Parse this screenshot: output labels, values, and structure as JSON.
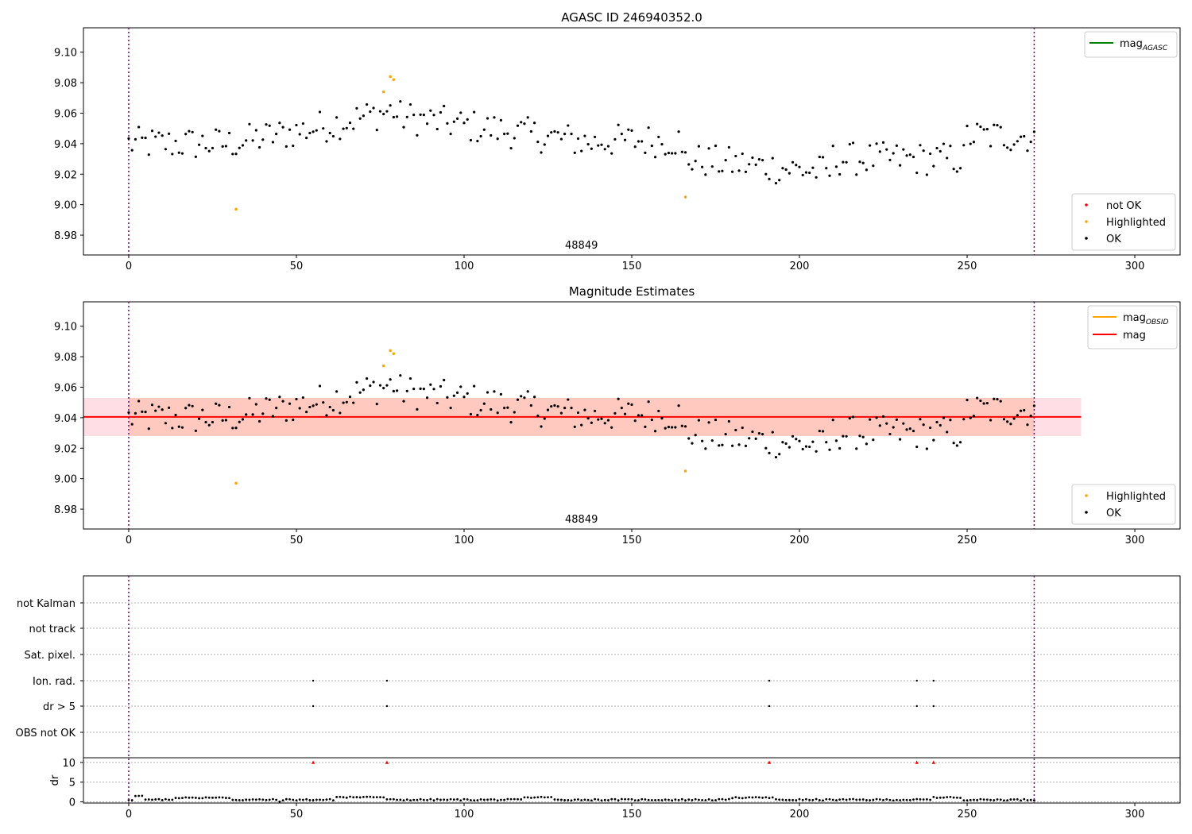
{
  "colors": {
    "ok": "#000000",
    "highlighted": "#ffa500",
    "not_ok": "#ff0000",
    "mag_agasc": "#008000",
    "mag_obsid": "#ffa500",
    "mag": "#ff0000",
    "band_outer": "#ffc0cb",
    "band_inner": "#ffa07a",
    "vline": "#800080",
    "grid": "#b0b0b0"
  },
  "chart_data": [
    {
      "type": "scatter",
      "title": "AGASC ID 246940352.0",
      "annotation": "48849",
      "xlim": [
        -13.5,
        313.5
      ],
      "ylim": [
        8.967,
        9.116
      ],
      "xticks": [
        0,
        50,
        100,
        150,
        200,
        250,
        300
      ],
      "yticks": [
        "8.98",
        "9.00",
        "9.02",
        "9.04",
        "9.06",
        "9.08",
        "9.10"
      ],
      "vlines": [
        0,
        270
      ],
      "legend_lines": [
        {
          "name": "mag",
          "sub": "AGASC",
          "color": "#008000"
        }
      ],
      "legend_markers": [
        {
          "name": "not OK",
          "color": "#ff0000"
        },
        {
          "name": "Highlighted",
          "color": "#ffa500"
        },
        {
          "name": "OK",
          "color": "#000000"
        }
      ],
      "highlighted_points": [
        [
          32,
          8.997
        ],
        [
          76,
          9.074
        ],
        [
          78,
          9.084
        ],
        [
          79,
          9.082
        ],
        [
          166,
          9.005
        ]
      ]
    },
    {
      "type": "scatter",
      "title": "Magnitude Estimates",
      "annotation": "48849",
      "xlim": [
        -13.5,
        313.5
      ],
      "ylim": [
        8.967,
        9.116
      ],
      "xticks": [
        0,
        50,
        100,
        150,
        200,
        250,
        300
      ],
      "yticks": [
        "8.98",
        "9.00",
        "9.02",
        "9.04",
        "9.06",
        "9.08",
        "9.10"
      ],
      "vlines": [
        0,
        270
      ],
      "mag_line": 9.0405,
      "band_outer": {
        "x": [
          -13.5,
          284
        ],
        "y": [
          9.028,
          9.053
        ]
      },
      "band_inner": {
        "x": [
          0,
          270
        ],
        "y": [
          9.028,
          9.053
        ]
      },
      "legend_lines": [
        {
          "name": "mag",
          "sub": "OBSID",
          "color": "#ffa500"
        },
        {
          "name": "mag",
          "sub": "",
          "color": "#ff0000"
        }
      ],
      "legend_markers": [
        {
          "name": "Highlighted",
          "color": "#ffa500"
        },
        {
          "name": "OK",
          "color": "#000000"
        }
      ],
      "highlighted_points": [
        [
          32,
          8.997
        ],
        [
          76,
          9.074
        ],
        [
          78,
          9.084
        ],
        [
          79,
          9.082
        ],
        [
          166,
          9.005
        ]
      ]
    },
    {
      "type": "scatter",
      "xlim": [
        -13.5,
        313.5
      ],
      "xticks": [
        0,
        50,
        100,
        150,
        200,
        250,
        300
      ],
      "vlines": [
        0,
        270
      ],
      "flag_rows": [
        "not Kalman",
        "not track",
        "Sat. pixel.",
        "Ion. rad.",
        "dr > 5",
        "OBS not OK"
      ],
      "flag_points": {
        "Ion. rad.": [
          55,
          77,
          191,
          235,
          240
        ],
        "dr > 5": [
          55,
          77,
          191,
          235,
          240
        ]
      },
      "dr_ylabel": "dr",
      "dr_ylim": [
        -0.3,
        11.2
      ],
      "dr_yticks": [
        0,
        5,
        10
      ],
      "dr_outliers": [
        55,
        77,
        191,
        235,
        240
      ]
    }
  ]
}
